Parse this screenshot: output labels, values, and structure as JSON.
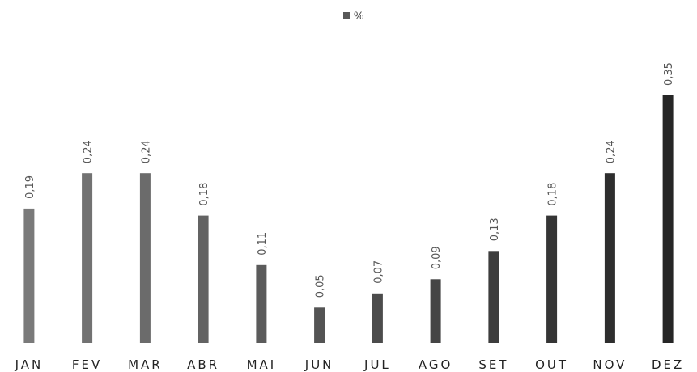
{
  "chart_data": {
    "type": "bar",
    "categories": [
      "JAN",
      "FEV",
      "MAR",
      "ABR",
      "MAI",
      "JUN",
      "JUL",
      "AGO",
      "SET",
      "OUT",
      "NOV",
      "DEZ"
    ],
    "series": [
      {
        "name": "%",
        "values": [
          0.19,
          0.24,
          0.24,
          0.18,
          0.11,
          0.05,
          0.07,
          0.09,
          0.13,
          0.18,
          0.24,
          0.35
        ],
        "labels": [
          "0,19",
          "0,24",
          "0,24",
          "0,18",
          "0,11",
          "0,05",
          "0,07",
          "0,09",
          "0,13",
          "0,18",
          "0,24",
          "0,35"
        ]
      }
    ],
    "legend": {
      "label": "%",
      "position": "top-center"
    },
    "ylim": [
      0,
      0.35
    ],
    "grid": false,
    "colors": {
      "bar_start": "#7a7a7a",
      "bar_end": "#262626",
      "background": "#ffffff"
    }
  }
}
